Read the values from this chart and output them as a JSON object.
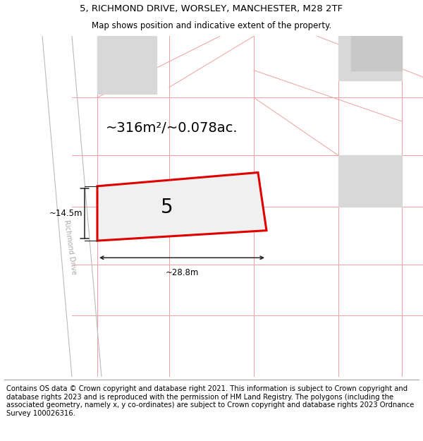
{
  "title_line1": "5, RICHMOND DRIVE, WORSLEY, MANCHESTER, M28 2TF",
  "title_line2": "Map shows position and indicative extent of the property.",
  "copyright_text": "Contains OS data © Crown copyright and database right 2021. This information is subject to Crown copyright and database rights 2023 and is reproduced with the permission of HM Land Registry. The polygons (including the associated geometry, namely x, y co-ordinates) are subject to Crown copyright and database rights 2023 Ordnance Survey 100026316.",
  "area_label": "~316m²/~0.078ac.",
  "number_label": "5",
  "dim_width": "~28.8m",
  "dim_height": "~14.5m",
  "road_label": "Richmond Drive",
  "bg_color": "#ffffff",
  "map_bg": "#ffffff",
  "plot_fill": "#f0f0f0",
  "plot_edge_color": "#e00000",
  "pink_line_color": "#f0a0a0",
  "building_fill": "#d8d8d8",
  "road_line_color": "#bbbbbb",
  "dim_line_color": "#222222",
  "title_fontsize": 9.5,
  "subtitle_fontsize": 8.5,
  "copyright_fontsize": 7.2,
  "area_fontsize": 14,
  "number_fontsize": 20
}
